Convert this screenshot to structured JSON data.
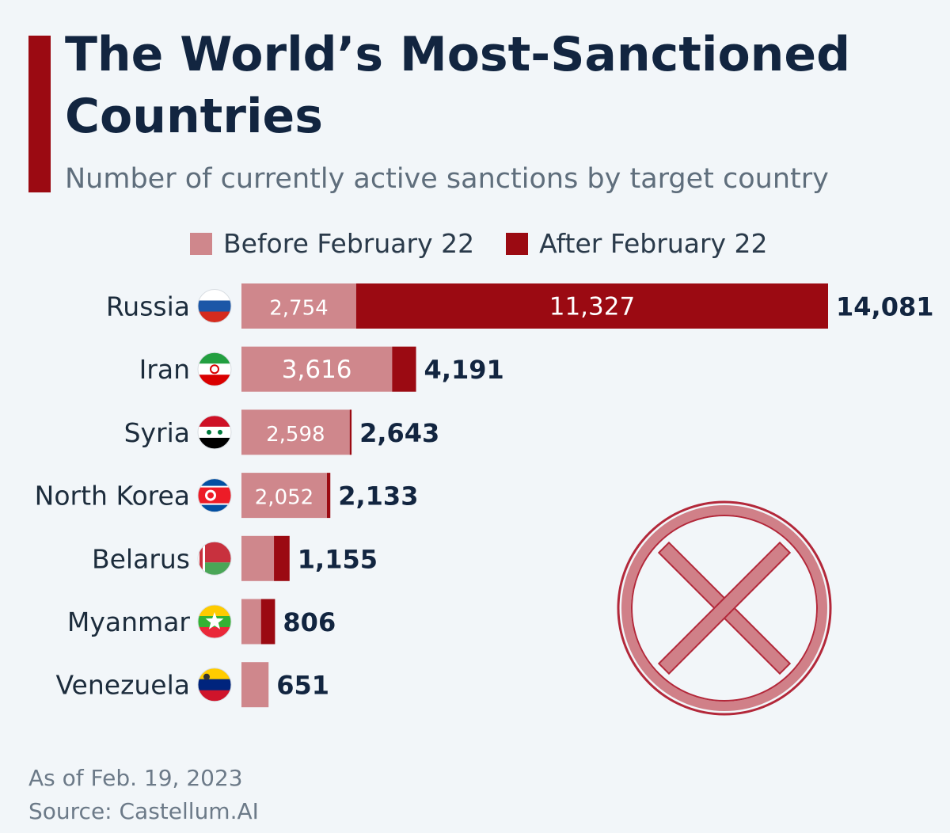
{
  "title": "The World’s Most-Sanctioned Countries",
  "subtitle": "Number of currently active sanctions by target country",
  "legend": {
    "before": "Before February 22",
    "after": "After February 22"
  },
  "colors": {
    "before": "#cf878c",
    "after": "#9b0a12",
    "title": "#122540",
    "background": "#f2f6f9"
  },
  "chart_data": {
    "type": "bar",
    "orientation": "horizontal",
    "stacked": true,
    "categories": [
      "Russia",
      "Iran",
      "Syria",
      "North Korea",
      "Belarus",
      "Myanmar",
      "Venezuela"
    ],
    "series": [
      {
        "name": "Before February 22",
        "values": [
          2754,
          3616,
          2598,
          2052,
          780,
          470,
          651
        ]
      },
      {
        "name": "After February 22",
        "values": [
          11327,
          575,
          45,
          81,
          375,
          336,
          0
        ]
      }
    ],
    "totals": [
      "14,081",
      "4,191",
      "2,643",
      "2,133",
      "1,155",
      "806",
      "651"
    ],
    "before_labels": [
      "2,754",
      "3,616",
      "2,598",
      "2,052",
      "",
      "",
      ""
    ],
    "after_labels": [
      "11,327",
      "",
      "",
      "",
      "",
      "",
      ""
    ],
    "flags": [
      "russia-flag",
      "iran-flag",
      "syria-flag",
      "north-korea-flag",
      "belarus-flag",
      "myanmar-flag",
      "venezuela-flag"
    ]
  },
  "footer": {
    "date": "As of Feb. 19, 2023",
    "source": "Source: Castellum.AI"
  }
}
